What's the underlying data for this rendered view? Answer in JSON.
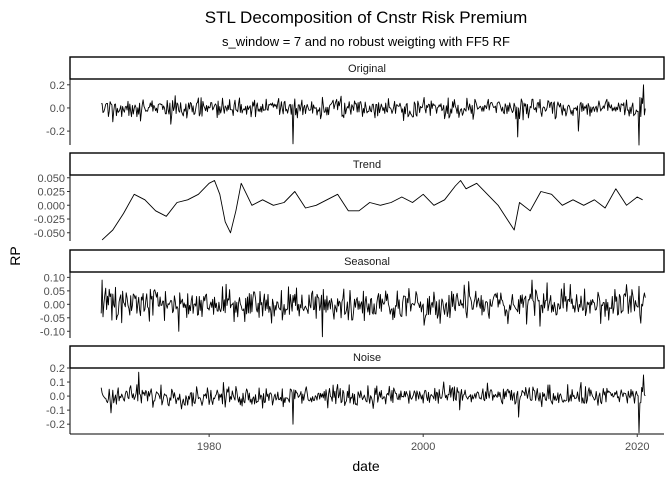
{
  "colors": {
    "background": "#ffffff",
    "line": "#000000",
    "strip_border": "#000000",
    "tick_text": "#4d4d4d"
  },
  "chart_data": {
    "type": "line",
    "title": "STL Decomposition of Cnstr Risk Premium",
    "subtitle": "s_window = 7 and no robust weigting with FF5 RF",
    "xlabel": "date",
    "ylabel": "RP",
    "xlim": [
      1967,
      2022.5
    ],
    "x_ticks": [
      1980,
      2000,
      2020
    ],
    "x_tick_labels": [
      "1980",
      "2000",
      "2020"
    ],
    "grid": false,
    "legend": "none",
    "x_start": 1969.917,
    "x_step": 0.08333,
    "panels": [
      {
        "name": "Original",
        "ylim": [
          -0.32,
          0.25
        ],
        "ticks": [
          0.2,
          0.0,
          -0.2
        ],
        "tick_labels": [
          "0.2",
          "0.0",
          "-0.2"
        ],
        "amplitude": 0.075,
        "spikes": [
          [
            1971.0,
            -0.12
          ],
          [
            1976.4,
            -0.14
          ],
          [
            1987.8,
            -0.31
          ],
          [
            2008.8,
            -0.25
          ],
          [
            2014.5,
            -0.2
          ],
          [
            2020.2,
            -0.32
          ],
          [
            2020.6,
            0.2
          ]
        ]
      },
      {
        "name": "Trend",
        "ylim": [
          -0.065,
          0.055
        ],
        "ticks": [
          0.05,
          0.025,
          0.0,
          -0.025,
          -0.05
        ],
        "tick_labels": [
          "0.050",
          "0.025",
          "0.000",
          "-0.025",
          "-0.050"
        ],
        "x": [
          1970,
          1971,
          1972,
          1973,
          1974,
          1975,
          1976,
          1977,
          1978,
          1979,
          1980,
          1980.5,
          1981,
          1981.5,
          1982,
          1982.5,
          1983,
          1983.5,
          1984,
          1985,
          1986,
          1987,
          1988,
          1989,
          1990,
          1991,
          1992,
          1993,
          1994,
          1995,
          1996,
          1997,
          1998,
          1999,
          2000,
          2001,
          2002,
          2003,
          2003.5,
          2004,
          2005,
          2006,
          2007,
          2008,
          2008.5,
          2009,
          2010,
          2011,
          2012,
          2013,
          2014,
          2015,
          2016,
          2017,
          2018,
          2019,
          2020,
          2020.5
        ],
        "values": [
          -0.063,
          -0.045,
          -0.015,
          0.02,
          0.01,
          -0.01,
          -0.02,
          0.005,
          0.01,
          0.02,
          0.04,
          0.045,
          0.02,
          -0.03,
          -0.05,
          -0.01,
          0.04,
          0.02,
          0.0,
          0.01,
          0.0,
          0.005,
          0.025,
          -0.005,
          0.0,
          0.01,
          0.02,
          -0.01,
          -0.01,
          0.005,
          0.0,
          0.005,
          0.015,
          0.005,
          0.02,
          0.0,
          0.01,
          0.035,
          0.045,
          0.03,
          0.04,
          0.02,
          0.0,
          -0.03,
          -0.045,
          0.005,
          -0.01,
          0.025,
          0.02,
          0.0,
          0.01,
          0.0,
          0.01,
          -0.005,
          0.03,
          0.0,
          0.015,
          0.01
        ]
      },
      {
        "name": "Seasonal",
        "ylim": [
          -0.125,
          0.12
        ],
        "ticks": [
          0.1,
          0.05,
          0.0,
          -0.05,
          -0.1
        ],
        "tick_labels": [
          "0.10",
          "0.05",
          "0.00",
          "-0.05",
          "-0.10"
        ],
        "amplitude": 0.055,
        "spikes": [
          [
            1970.0,
            0.09
          ],
          [
            1977.2,
            -0.1
          ],
          [
            1990.6,
            -0.12
          ],
          [
            2010.2,
            0.09
          ],
          [
            2011.6,
            0.08
          ],
          [
            2020.3,
            -0.07
          ]
        ]
      },
      {
        "name": "Noise",
        "ylim": [
          -0.27,
          0.2
        ],
        "ticks": [
          0.2,
          0.1,
          0.0,
          -0.1,
          -0.2
        ],
        "tick_labels": [
          "0.2",
          "0.1",
          "0.0",
          "-0.1",
          "-0.2"
        ],
        "amplitude": 0.065,
        "spikes": [
          [
            1970.8,
            -0.12
          ],
          [
            1973.4,
            0.17
          ],
          [
            1987.8,
            -0.2
          ],
          [
            2008.9,
            -0.15
          ],
          [
            2020.2,
            -0.26
          ],
          [
            2020.6,
            0.15
          ]
        ]
      }
    ]
  }
}
